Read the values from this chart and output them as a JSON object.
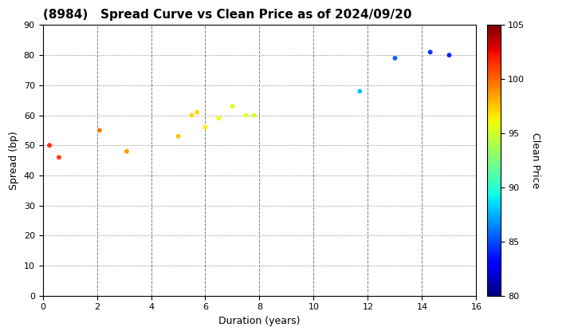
{
  "title": "(8984)   Spread Curve vs Clean Price as of 2024/09/20",
  "xlabel": "Duration (years)",
  "ylabel": "Spread (bp)",
  "colorbar_label": "Clean Price",
  "xlim": [
    0,
    16
  ],
  "ylim": [
    0,
    90
  ],
  "xticks": [
    0,
    2,
    4,
    6,
    8,
    10,
    12,
    14,
    16
  ],
  "yticks": [
    0,
    10,
    20,
    30,
    40,
    50,
    60,
    70,
    80,
    90
  ],
  "cbar_min": 80,
  "cbar_max": 105,
  "cbar_ticks": [
    80,
    85,
    90,
    95,
    100,
    105
  ],
  "points": [
    {
      "duration": 0.25,
      "spread": 50,
      "price": 101.5
    },
    {
      "duration": 0.6,
      "spread": 46,
      "price": 101.0
    },
    {
      "duration": 2.1,
      "spread": 55,
      "price": 99.5
    },
    {
      "duration": 3.1,
      "spread": 48,
      "price": 98.5
    },
    {
      "duration": 5.0,
      "spread": 53,
      "price": 97.5
    },
    {
      "duration": 5.5,
      "spread": 60,
      "price": 97.0
    },
    {
      "duration": 5.7,
      "spread": 61,
      "price": 97.0
    },
    {
      "duration": 6.0,
      "spread": 56,
      "price": 96.5
    },
    {
      "duration": 6.5,
      "spread": 59,
      "price": 96.0
    },
    {
      "duration": 7.0,
      "spread": 63,
      "price": 95.5
    },
    {
      "duration": 7.5,
      "spread": 60,
      "price": 95.5
    },
    {
      "duration": 7.8,
      "spread": 60,
      "price": 95.0
    },
    {
      "duration": 11.7,
      "spread": 68,
      "price": 88.0
    },
    {
      "duration": 13.0,
      "spread": 79,
      "price": 85.5
    },
    {
      "duration": 14.3,
      "spread": 81,
      "price": 84.5
    },
    {
      "duration": 15.0,
      "spread": 80,
      "price": 84.0
    }
  ],
  "bg_color": "#ffffff",
  "title_fontsize": 11,
  "label_fontsize": 9,
  "tick_fontsize": 8,
  "marker_size": 18
}
